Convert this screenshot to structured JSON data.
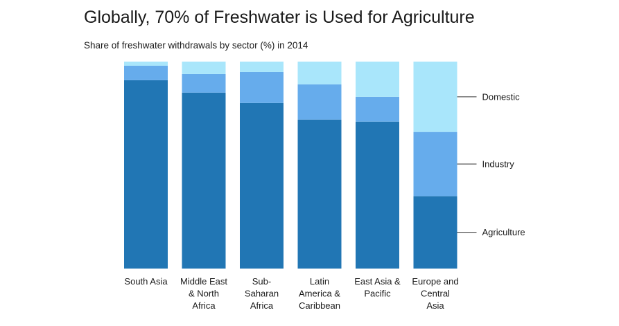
{
  "chart_title": "Globally, 70% of Freshwater is Used for Agriculture",
  "chart_subtitle": "Share of freshwater withdrawals by sector (%) in 2014",
  "chart_data": {
    "type": "bar",
    "stacked": true,
    "title": "Globally, 70% of Freshwater is Used for Agriculture",
    "subtitle": "Share of freshwater withdrawals by sector (%) in 2014",
    "xlabel": "",
    "ylabel": "",
    "ylim": [
      0,
      100
    ],
    "grid": false,
    "legend_placement": "right",
    "categories": [
      [
        "South Asia"
      ],
      [
        "Middle East",
        "& North",
        "Africa"
      ],
      [
        "Sub-",
        "Saharan",
        "Africa"
      ],
      [
        "Latin",
        "America &",
        "Caribbean"
      ],
      [
        "East Asia &",
        "Pacific"
      ],
      [
        "Europe and",
        "Central",
        "Asia"
      ]
    ],
    "series": [
      {
        "name": "Agriculture",
        "color": "#2176b4",
        "values": [
          91,
          85,
          80,
          72,
          71,
          35
        ]
      },
      {
        "name": "Industry",
        "color": "#66acec",
        "values": [
          7,
          9,
          15,
          17,
          12,
          31
        ]
      },
      {
        "name": "Domestic",
        "color": "#a9e6fb",
        "values": [
          2,
          6,
          5,
          11,
          17,
          34
        ]
      }
    ]
  }
}
